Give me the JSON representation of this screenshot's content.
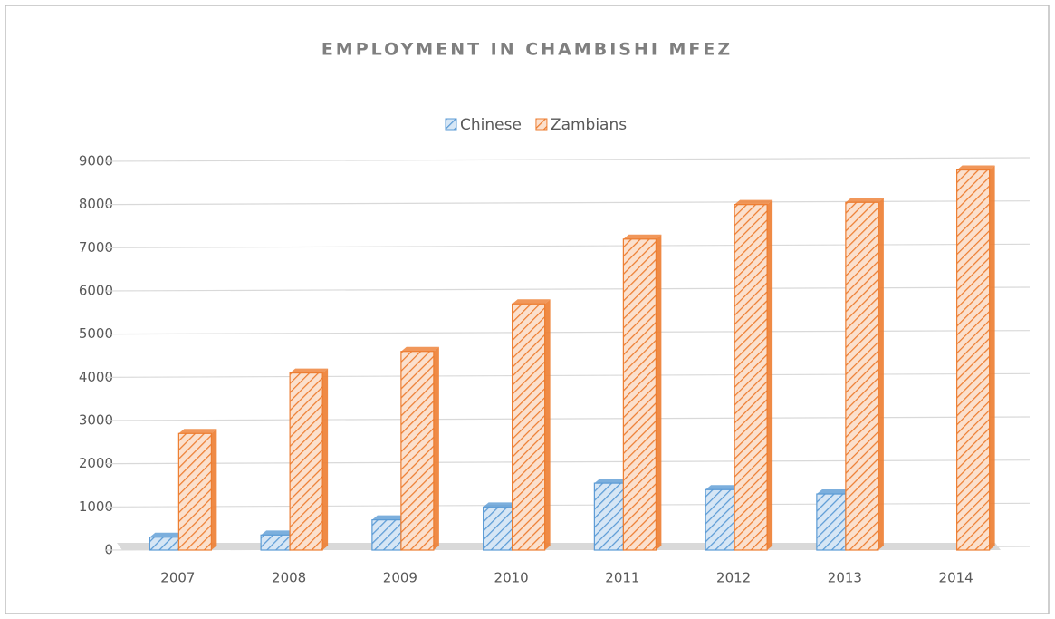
{
  "chart_data": {
    "type": "bar",
    "title": "EMPLOYMENT IN CHAMBISHI MFEZ",
    "categories": [
      "2007",
      "2008",
      "2009",
      "2010",
      "2011",
      "2012",
      "2013",
      "2014"
    ],
    "series": [
      {
        "name": "Chinese",
        "color": "#5b9bd5",
        "values": [
          300,
          350,
          700,
          1000,
          1550,
          1400,
          1300,
          0
        ]
      },
      {
        "name": "Zambians",
        "color": "#ed7d31",
        "values": [
          2700,
          4100,
          4600,
          5700,
          7200,
          8000,
          8050,
          8800
        ]
      }
    ],
    "ylim": [
      0,
      9000
    ],
    "yticks": [
      0,
      1000,
      2000,
      3000,
      4000,
      5000,
      6000,
      7000,
      8000,
      9000
    ],
    "grid": true,
    "legend": "top"
  }
}
